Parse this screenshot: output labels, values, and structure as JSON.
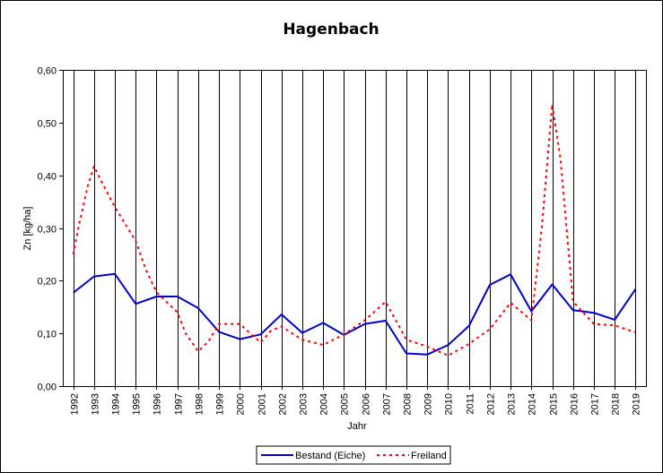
{
  "chart_data": {
    "type": "line",
    "title": "Hagenbach",
    "xlabel": "Jahr",
    "ylabel": "Zn [kg/ha]",
    "ylim": [
      0,
      0.6
    ],
    "y_ticks": [
      "0,00",
      "0,10",
      "0,20",
      "0,30",
      "0,40",
      "0,50",
      "0,60"
    ],
    "grid": "vertical gridlines at each year",
    "legend_position": "bottom",
    "x": [
      "1992",
      "1993",
      "1994",
      "1995",
      "1996",
      "1997",
      "1998",
      "1999",
      "2000",
      "2001",
      "2002",
      "2003",
      "2004",
      "2005",
      "2006",
      "2007",
      "2008",
      "2009",
      "2010",
      "2011",
      "2012",
      "2013",
      "2014",
      "2015",
      "2016",
      "2017",
      "2018",
      "2019"
    ],
    "series": [
      {
        "name": "Bestand (Eiche)",
        "color": "#0000cc",
        "style": "solid",
        "values": [
          [
            1992.0,
            0.177
          ],
          [
            1993.0,
            0.208
          ],
          [
            1994.0,
            0.213
          ],
          [
            1995.0,
            0.156
          ],
          [
            1996.0,
            0.17
          ],
          [
            1997.0,
            0.17
          ],
          [
            1998.0,
            0.148
          ],
          [
            1999.0,
            0.103
          ],
          [
            2000.0,
            0.089
          ],
          [
            2001.0,
            0.098
          ],
          [
            2002.0,
            0.136
          ],
          [
            2003.0,
            0.101
          ],
          [
            2004.0,
            0.12
          ],
          [
            2005.0,
            0.097
          ],
          [
            2006.0,
            0.118
          ],
          [
            2007.0,
            0.124
          ],
          [
            2008.0,
            0.062
          ],
          [
            2009.0,
            0.06
          ],
          [
            2010.0,
            0.078
          ],
          [
            2011.0,
            0.114
          ],
          [
            2012.0,
            0.192
          ],
          [
            2013.0,
            0.212
          ],
          [
            2014.0,
            0.142
          ],
          [
            2015.0,
            0.193
          ],
          [
            2016.0,
            0.144
          ],
          [
            2017.0,
            0.139
          ],
          [
            2018.0,
            0.126
          ],
          [
            2019.0,
            0.184
          ]
        ]
      },
      {
        "name": "Freiland",
        "color": "#ff0000",
        "style": "dotted",
        "values": [
          [
            1992.0,
            0.25
          ],
          [
            1992.3,
            0.31
          ],
          [
            1992.7,
            0.38
          ],
          [
            1993.0,
            0.417
          ],
          [
            1993.4,
            0.385
          ],
          [
            1994.0,
            0.34
          ],
          [
            1995.0,
            0.275
          ],
          [
            1995.5,
            0.22
          ],
          [
            1996.0,
            0.178
          ],
          [
            1997.0,
            0.14
          ],
          [
            1997.4,
            0.1
          ],
          [
            1998.0,
            0.066
          ],
          [
            1998.5,
            0.085
          ],
          [
            1999.0,
            0.118
          ],
          [
            2000.0,
            0.118
          ],
          [
            2000.5,
            0.1
          ],
          [
            2001.0,
            0.083
          ],
          [
            2001.5,
            0.105
          ],
          [
            2002.0,
            0.113
          ],
          [
            2003.0,
            0.088
          ],
          [
            2004.0,
            0.078
          ],
          [
            2005.0,
            0.098
          ],
          [
            2006.0,
            0.125
          ],
          [
            2007.0,
            0.16
          ],
          [
            2008.0,
            0.088
          ],
          [
            2009.0,
            0.075
          ],
          [
            2010.0,
            0.058
          ],
          [
            2011.0,
            0.08
          ],
          [
            2012.0,
            0.108
          ],
          [
            2013.0,
            0.158
          ],
          [
            2014.0,
            0.125
          ],
          [
            2014.5,
            0.3
          ],
          [
            2015.0,
            0.535
          ],
          [
            2015.4,
            0.43
          ],
          [
            2015.8,
            0.25
          ],
          [
            2016.0,
            0.16
          ],
          [
            2017.0,
            0.118
          ],
          [
            2018.0,
            0.115
          ],
          [
            2019.0,
            0.102
          ]
        ]
      }
    ]
  }
}
